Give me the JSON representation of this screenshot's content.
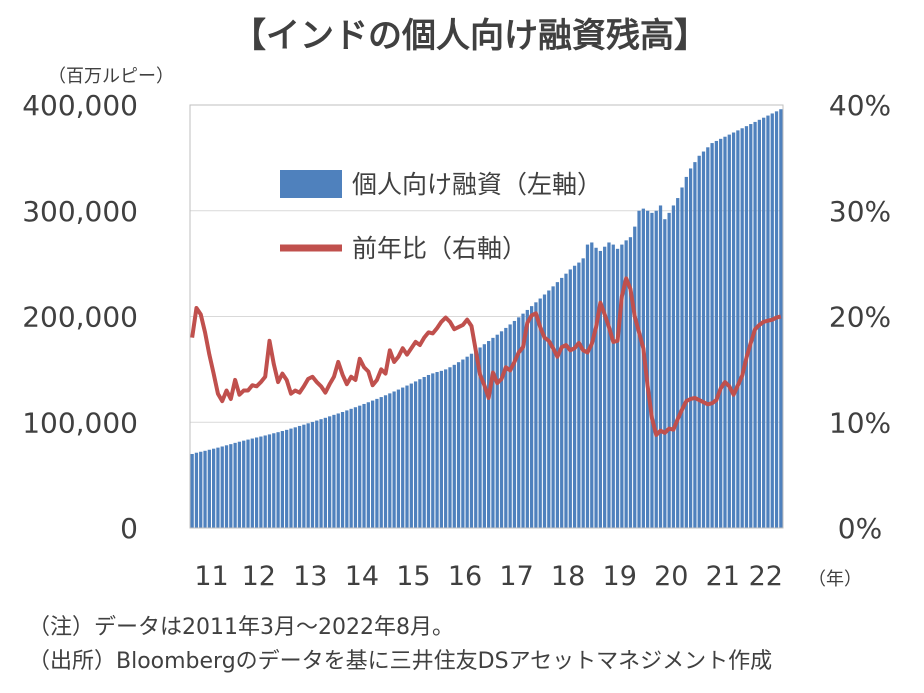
{
  "chart_data": {
    "type": "bar+line",
    "title": "【インドの個人向け融資残高】",
    "y_left_unit": "（百万ルピー）",
    "x_unit": "（年）",
    "x_tick_labels": [
      "11",
      "12",
      "13",
      "14",
      "15",
      "16",
      "17",
      "18",
      "19",
      "20",
      "21",
      "22"
    ],
    "y_left_ticks": [
      "400,000",
      "300,000",
      "200,000",
      "100,000",
      "0"
    ],
    "y_right_ticks": [
      "40%",
      "30%",
      "20%",
      "10%",
      "0%"
    ],
    "y_left_range": [
      0,
      400000
    ],
    "y_right_range": [
      0,
      40
    ],
    "grid": true,
    "legend_placement": "top-left inside plot",
    "notes": [
      "（注）データは2011年3月～2022年8月。",
      "（出所）Bloombergのデータを基に三井住友DSアセットマネジメント作成"
    ],
    "series": [
      {
        "name": "個人向け融資（左軸）",
        "type": "bar",
        "axis": "left",
        "color": "#4f81bd",
        "x_start": "2011-03",
        "x_end": "2022-08",
        "values": [
          70000,
          71200,
          72100,
          73000,
          74000,
          75000,
          76000,
          77100,
          78200,
          79300,
          80500,
          81600,
          82600,
          83600,
          84600,
          85600,
          86500,
          87500,
          88500,
          89600,
          90600,
          91700,
          92800,
          94000,
          95200,
          96500,
          97700,
          99000,
          100300,
          101600,
          102900,
          104200,
          105600,
          107000,
          108300,
          109700,
          111200,
          112700,
          114200,
          115700,
          117300,
          118900,
          120500,
          122100,
          123800,
          125500,
          127300,
          129100,
          130900,
          132800,
          134700,
          136600,
          138600,
          140700,
          142800,
          144700,
          146200,
          147500,
          148600,
          150000,
          152000,
          154300,
          156800,
          159300,
          162000,
          164800,
          167700,
          170700,
          173800,
          176800,
          179800,
          182800,
          186000,
          189200,
          192500,
          195800,
          199200,
          202700,
          206200,
          209800,
          213400,
          217000,
          220800,
          224600,
          228500,
          232500,
          236500,
          240500,
          244500,
          248000,
          251000,
          255000,
          268000,
          270000,
          265000,
          262000,
          266000,
          270000,
          268000,
          264000,
          268000,
          272000,
          275000,
          285000,
          300000,
          302000,
          300000,
          298000,
          300000,
          305000,
          292000,
          298000,
          305000,
          312000,
          322000,
          332000,
          340000,
          346000,
          352000,
          356000,
          360000,
          364000,
          366000,
          368000,
          370000,
          372000,
          374000,
          376000,
          378000,
          380000,
          382000,
          384000,
          386000,
          388000,
          390000,
          392000,
          394000,
          396000
        ]
      },
      {
        "name": "前年比（右軸）",
        "type": "line",
        "axis": "right",
        "color": "#c0504d",
        "values": [
          18.0,
          20.8,
          20.2,
          18.5,
          16.4,
          14.6,
          12.7,
          12.0,
          13.0,
          12.2,
          14.0,
          12.6,
          13.0,
          13.0,
          13.5,
          13.4,
          13.8,
          14.3,
          17.7,
          15.5,
          13.8,
          14.6,
          14.0,
          12.7,
          13.0,
          12.8,
          13.4,
          14.1,
          14.3,
          13.8,
          13.4,
          12.8,
          13.6,
          14.3,
          15.7,
          14.5,
          13.6,
          14.3,
          14.0,
          16.0,
          15.2,
          14.8,
          13.5,
          14.0,
          15.0,
          14.6,
          16.8,
          15.7,
          16.2,
          17.0,
          16.4,
          17.0,
          17.6,
          17.3,
          18.0,
          18.5,
          18.4,
          18.9,
          19.5,
          19.9,
          19.5,
          18.8,
          19.0,
          19.2,
          19.7,
          19.1,
          16.8,
          14.5,
          13.5,
          12.3,
          14.7,
          13.7,
          14.1,
          15.2,
          14.9,
          15.7,
          16.6,
          17.1,
          19.4,
          20.1,
          20.3,
          19.0,
          18.0,
          17.7,
          17.0,
          16.2,
          17.1,
          17.3,
          16.8,
          17.0,
          17.5,
          16.8,
          16.6,
          17.4,
          19.0,
          21.3,
          20.2,
          19.0,
          17.6,
          17.7,
          21.9,
          23.6,
          22.6,
          20.0,
          18.5,
          17.0,
          13.4,
          10.4,
          8.8,
          9.2,
          9.0,
          9.4,
          9.3,
          10.3,
          11.2,
          12.0,
          12.2,
          12.3,
          12.1,
          11.9,
          11.7,
          11.8,
          12.1,
          13.2,
          13.8,
          13.4,
          12.6,
          13.5,
          14.4,
          16.1,
          17.5,
          18.8,
          19.2,
          19.5,
          19.6,
          19.7,
          19.9,
          20.0
        ]
      }
    ]
  }
}
